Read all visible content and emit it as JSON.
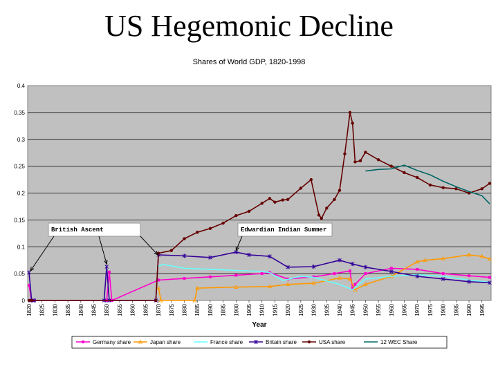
{
  "slide": {
    "title": "US Hegemonic Decline"
  },
  "chart_data": {
    "type": "line",
    "title": "Shares of World GDP, 1820-1998",
    "xlabel": "Year",
    "ylabel": "",
    "ylim": [
      0,
      0.4
    ],
    "yticks": [
      "0",
      "0.05",
      "0.1",
      "0.15",
      "0.2",
      "0.25",
      "0.3",
      "0.35",
      "0.4"
    ],
    "xticks": [
      "1820",
      "1825",
      "1830",
      "1835",
      "1840",
      "1845",
      "1850",
      "1855",
      "1860",
      "1865",
      "1870",
      "1875",
      "1880",
      "1885",
      "1890",
      "1895",
      "1900",
      "1905",
      "1910",
      "1915",
      "1920",
      "1925",
      "1930",
      "1935",
      "1940",
      "1945",
      "1950",
      "1955",
      "1960",
      "1965",
      "1970",
      "1975",
      "1980",
      "1985",
      "1990",
      "1995"
    ],
    "grid": true,
    "legend": "bottom",
    "annotations": [
      {
        "text": "British Ascent",
        "targets": [
          1820,
          1850,
          1870
        ]
      },
      {
        "text": "Edwardian Indian Summer",
        "targets": [
          1900
        ]
      }
    ],
    "series": [
      {
        "name": "Germany share",
        "color": "#ff00cc",
        "marker": "square",
        "x": [
          1820,
          1821,
          1822,
          1850,
          1851,
          1852,
          1870,
          1880,
          1890,
          1900,
          1910,
          1913,
          1920,
          1930,
          1938,
          1944,
          1945,
          1946,
          1950,
          1960,
          1970,
          1980,
          1990,
          1998
        ],
        "y": [
          0.028,
          0.0,
          0.0,
          0.0,
          0.053,
          0.0,
          0.038,
          0.041,
          0.044,
          0.047,
          0.05,
          0.052,
          0.04,
          0.044,
          0.05,
          0.055,
          0.022,
          0.03,
          0.05,
          0.06,
          0.058,
          0.05,
          0.046,
          0.043
        ]
      },
      {
        "name": "Japan share",
        "color": "#ff9900",
        "marker": "triangle",
        "x": [
          1870,
          1871,
          1884,
          1885,
          1900,
          1913,
          1920,
          1930,
          1940,
          1944,
          1946,
          1950,
          1960,
          1970,
          1973,
          1980,
          1990,
          1995,
          1998
        ],
        "y": [
          0.023,
          0.0,
          0.0,
          0.023,
          0.025,
          0.026,
          0.03,
          0.032,
          0.042,
          0.04,
          0.02,
          0.03,
          0.045,
          0.072,
          0.075,
          0.078,
          0.085,
          0.082,
          0.077
        ]
      },
      {
        "name": "France share",
        "color": "#66ffff",
        "marker": "none",
        "x": [
          1870,
          1872,
          1880,
          1890,
          1900,
          1910,
          1913,
          1918,
          1925,
          1930,
          1940,
          1945,
          1950,
          1960,
          1970,
          1980,
          1990,
          1998
        ],
        "y": [
          0.064,
          0.067,
          0.06,
          0.058,
          0.056,
          0.054,
          0.052,
          0.037,
          0.045,
          0.043,
          0.03,
          0.02,
          0.04,
          0.045,
          0.048,
          0.045,
          0.038,
          0.034
        ]
      },
      {
        "name": "Britain share",
        "color": "#330099",
        "marker": "star",
        "x": [
          1820,
          1821,
          1822,
          1849,
          1850,
          1851,
          1869,
          1870,
          1880,
          1890,
          1900,
          1905,
          1913,
          1920,
          1930,
          1940,
          1945,
          1950,
          1960,
          1970,
          1980,
          1990,
          1998
        ],
        "y": [
          0.052,
          0.0,
          0.0,
          0.0,
          0.063,
          0.0,
          0.0,
          0.085,
          0.083,
          0.08,
          0.09,
          0.085,
          0.082,
          0.062,
          0.063,
          0.075,
          0.068,
          0.062,
          0.054,
          0.045,
          0.04,
          0.035,
          0.033
        ]
      },
      {
        "name": "USA share",
        "color": "#660000",
        "marker": "circle",
        "x": [
          1820,
          1821,
          1869,
          1870,
          1875,
          1880,
          1885,
          1890,
          1895,
          1900,
          1905,
          1910,
          1913,
          1915,
          1918,
          1920,
          1925,
          1929,
          1932,
          1933,
          1935,
          1938,
          1940,
          1942,
          1944,
          1945,
          1946,
          1948,
          1950,
          1955,
          1960,
          1965,
          1970,
          1975,
          1980,
          1985,
          1990,
          1995,
          1998
        ],
        "y": [
          0.0,
          0.0,
          0.0,
          0.088,
          0.093,
          0.115,
          0.127,
          0.134,
          0.144,
          0.158,
          0.166,
          0.181,
          0.19,
          0.183,
          0.187,
          0.188,
          0.209,
          0.225,
          0.159,
          0.153,
          0.172,
          0.188,
          0.205,
          0.273,
          0.35,
          0.33,
          0.258,
          0.26,
          0.276,
          0.262,
          0.25,
          0.238,
          0.229,
          0.215,
          0.21,
          0.208,
          0.2,
          0.208,
          0.218
        ]
      },
      {
        "name": "12 WEC Share",
        "color": "#006666",
        "marker": "none",
        "x": [
          1950,
          1955,
          1960,
          1965,
          1970,
          1975,
          1980,
          1985,
          1990,
          1995,
          1998
        ],
        "y": [
          0.241,
          0.244,
          0.245,
          0.252,
          0.242,
          0.234,
          0.222,
          0.212,
          0.203,
          0.195,
          0.18
        ]
      }
    ]
  }
}
